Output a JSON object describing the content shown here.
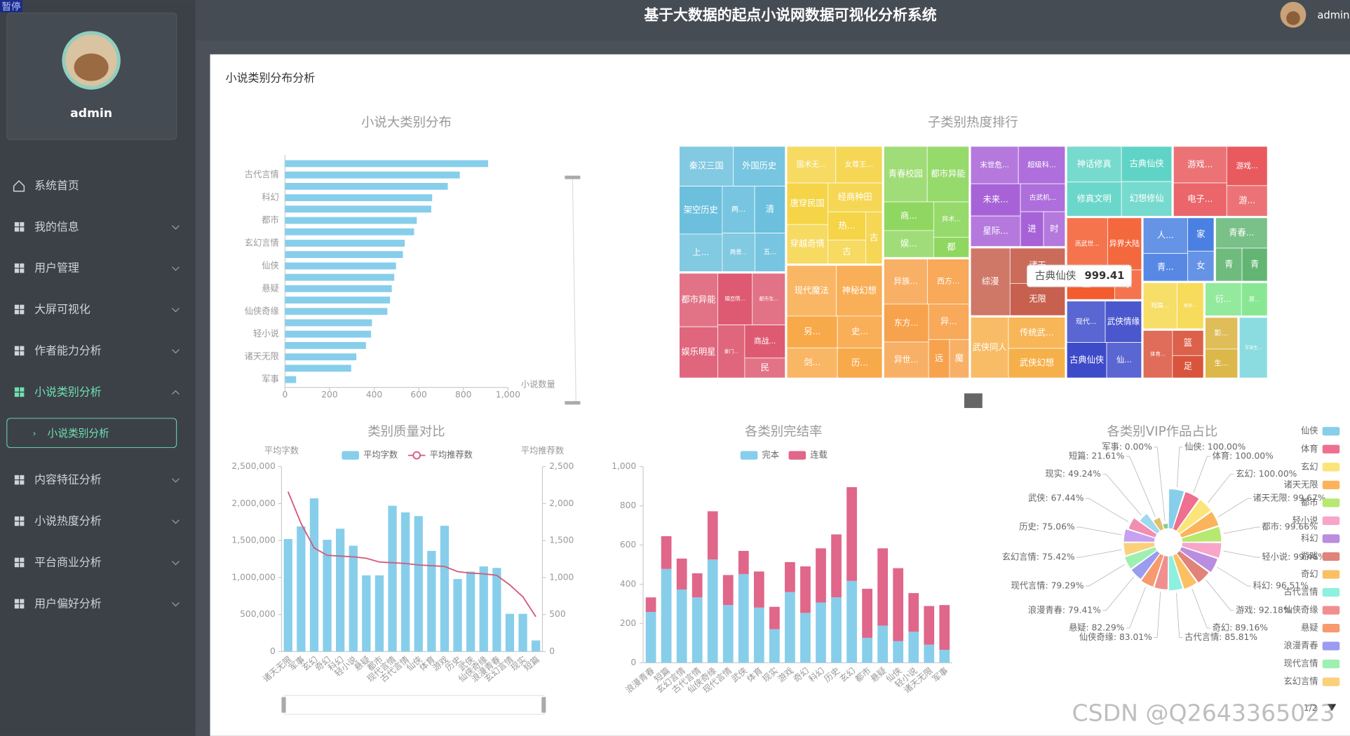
{
  "header": {
    "title": "基于大数据的起点小说网数据可视化分析系统",
    "user": "admin",
    "badge": "暂停"
  },
  "sidebar": {
    "profile": "admin",
    "menu": [
      {
        "label": "系统首页"
      },
      {
        "label": "我的信息"
      },
      {
        "label": "用户管理"
      },
      {
        "label": "大屏可视化"
      },
      {
        "label": "作者能力分析"
      },
      {
        "label": "小说类别分析",
        "children": [
          "小说类别分析"
        ]
      },
      {
        "label": "内容特征分析"
      },
      {
        "label": "小说热度分析"
      },
      {
        "label": "平台商业分析"
      },
      {
        "label": "用户偏好分析"
      }
    ]
  },
  "panel_title": "小说类别分布分析",
  "watermark": "CSDN @Q2643365023",
  "chart_data": [
    {
      "type": "hbar",
      "title": "小说大类别分布",
      "color": "#87ceeb",
      "categories": [
        null,
        "古代言情",
        null,
        "科幻",
        null,
        "都市",
        null,
        "玄幻言情",
        null,
        "仙侠",
        null,
        "悬疑",
        null,
        "仙侠奇缘",
        null,
        "轻小说",
        null,
        "诸天无限",
        null,
        "军事"
      ],
      "values": [
        911,
        784,
        730,
        660,
        656,
        591,
        579,
        537,
        529,
        498,
        490,
        479,
        471,
        459,
        390,
        386,
        363,
        320,
        297,
        50
      ],
      "xlim": [
        0,
        1000
      ],
      "xticks": [
        0,
        200,
        400,
        600,
        800,
        {
          "value": 1000,
          "label": "1,000"
        }
      ],
      "x_label": "小说数量"
    },
    {
      "type": "treemap",
      "title": "子类别热度排行",
      "groups": [
        {
          "color": "#6cc0dd",
          "children": [
            {
              "name": "秦汉三国",
              "value": 1200
            },
            {
              "name": "外国历史",
              "value": 1150
            },
            {
              "name": "架空历史",
              "value": 1150
            },
            {
              "name": "上...",
              "value": 900
            },
            {
              "name": "两...",
              "value": 850
            },
            {
              "name": "清",
              "value": 800
            },
            {
              "name": "两晋...",
              "value": 700
            },
            {
              "name": "五...",
              "value": 650
            }
          ]
        },
        {
          "color": "#dd5a72",
          "children": [
            {
              "name": "都市异能",
              "value": 1150
            },
            {
              "name": "娱乐明星",
              "value": 1100
            },
            {
              "name": "婚恋情...",
              "value": 1000
            },
            {
              "name": "都市生...",
              "value": 950
            },
            {
              "name": "豪门...",
              "value": 800
            },
            {
              "name": "商战...",
              "value": 750
            },
            {
              "name": "民",
              "value": 450
            }
          ]
        },
        {
          "color": "#f5d447",
          "children": [
            {
              "name": "国术无...",
              "value": 1000
            },
            {
              "name": "女尊王...",
              "value": 950
            },
            {
              "name": "唐穿民国",
              "value": 950
            },
            {
              "name": "穿越奇情",
              "value": 900
            },
            {
              "name": "经商种田",
              "value": 880
            },
            {
              "name": "热...",
              "value": 600
            },
            {
              "name": "古",
              "value": 500
            },
            {
              "name": "古",
              "value": 480
            }
          ]
        },
        {
          "color": "#f8a94a",
          "children": [
            {
              "name": "现代魔法",
              "value": 1400
            },
            {
              "name": "神秘幻想",
              "value": 1300
            },
            {
              "name": "另...",
              "value": 900
            },
            {
              "name": "剑...",
              "value": 850
            },
            {
              "name": "史...",
              "value": 800
            },
            {
              "name": "历...",
              "value": 750
            }
          ]
        },
        {
          "color": "#8fd760",
          "children": [
            {
              "name": "青春校园",
              "value": 1350
            },
            {
              "name": "都市异能",
              "value": 1300
            },
            {
              "name": "商...",
              "value": 800
            },
            {
              "name": "娱...",
              "value": 750
            },
            {
              "name": "异术...",
              "value": 700
            },
            {
              "name": "都",
              "value": 400
            }
          ]
        },
        {
          "color": "#f7a24c",
          "children": [
            {
              "name": "异族...",
              "value": 1100
            },
            {
              "name": "西方...",
              "value": 1050
            },
            {
              "name": "东方...",
              "value": 950
            },
            {
              "name": "异世...",
              "value": 900
            },
            {
              "name": "异...",
              "value": 800
            },
            {
              "name": "远",
              "value": 450
            },
            {
              "name": "魔",
              "value": 420
            }
          ]
        },
        {
          "color": "#a862d8",
          "children": [
            {
              "name": "末世危...",
              "value": 1000
            },
            {
              "name": "超级科...",
              "value": 980
            },
            {
              "name": "未来...",
              "value": 900
            },
            {
              "name": "星际...",
              "value": 850
            },
            {
              "name": "古武机...",
              "value": 700
            },
            {
              "name": "进",
              "value": 450
            },
            {
              "name": "时",
              "value": 420
            }
          ]
        },
        {
          "color": "#c7604e",
          "children": [
            {
              "name": "综漫",
              "value": 1500
            },
            {
              "name": "诸天",
              "value": 1100
            },
            {
              "name": "无限",
              "value": 1000
            }
          ]
        },
        {
          "color": "#f6b04a",
          "children": [
            {
              "name": "武侠同人",
              "value": 1300
            },
            {
              "name": "传统武...",
              "value": 1000
            },
            {
              "name": "武侠幻想",
              "value": 950
            }
          ]
        },
        {
          "color": "#5fd4c6",
          "children": [
            {
              "name": "神话修真",
              "value": 1100
            },
            {
              "name": "修真文明",
              "value": 1050
            },
            {
              "name": "古典仙侠",
              "value": 999.41
            },
            {
              "name": "幻想修仙",
              "value": 980
            }
          ]
        },
        {
          "color": "#e85a5e",
          "children": [
            {
              "name": "游戏...",
              "value": 1100
            },
            {
              "name": "电子...",
              "value": 1000
            },
            {
              "name": "游戏...",
              "value": 900
            },
            {
              "name": "游...",
              "value": 700
            }
          ]
        },
        {
          "color": "#f35c2e",
          "children": [
            {
              "name": "高武世...",
              "value": 1200
            },
            {
              "name": "异界大陆",
              "value": 1000
            },
            {
              "name": "王...",
              "value": 800
            },
            {
              "name": "东",
              "value": 450
            }
          ]
        },
        {
          "color": "#3d4bc9",
          "children": [
            {
              "name": "现代...",
              "value": 900
            },
            {
              "name": "武侠情缘",
              "value": 850
            },
            {
              "name": "古典仙侠",
              "value": 800
            },
            {
              "name": "仙...",
              "value": 700
            }
          ]
        },
        {
          "color": "#4a80e2",
          "children": [
            {
              "name": "人...",
              "value": 900
            },
            {
              "name": "青...",
              "value": 700
            },
            {
              "name": "家",
              "value": 500
            },
            {
              "name": "女",
              "value": 450
            }
          ]
        },
        {
          "color": "#63b574",
          "children": [
            {
              "name": "青春...",
              "value": 900
            },
            {
              "name": "青",
              "value": 500
            },
            {
              "name": "青",
              "value": 480
            }
          ]
        },
        {
          "color": "#f6d84e",
          "children": [
            {
              "name": "短篇...",
              "value": 900
            },
            {
              "name": "奇妙...",
              "value": 700
            }
          ]
        },
        {
          "color": "#d9543c",
          "children": [
            {
              "name": "体育...",
              "value": 800
            },
            {
              "name": "篮",
              "value": 450
            },
            {
              "name": "足",
              "value": 400
            }
          ]
        },
        {
          "color": "#80e58b",
          "children": [
            {
              "name": "衍...",
              "value": 700
            },
            {
              "name": "原...",
              "value": 500
            }
          ]
        },
        {
          "color": "#d9b23c",
          "children": [
            {
              "name": "影...",
              "value": 600
            },
            {
              "name": "生...",
              "value": 550
            }
          ]
        },
        {
          "color": "#76d6da",
          "children": [
            {
              "name": "军旅生...",
              "value": 1000
            }
          ]
        }
      ],
      "tooltip": {
        "name": "古典仙侠",
        "value": 999.41
      }
    },
    {
      "type": "bar_line",
      "title": "类别质量对比",
      "categories": [
        "诸天无限",
        "军事",
        "玄幻",
        "奇幻",
        "科幻",
        "轻小说",
        "悬疑",
        "都市",
        "现代言情",
        "古代言情",
        "仙侠",
        "体育",
        "游戏",
        "历史",
        "武侠",
        "仙侠奇缘",
        "浪漫青春",
        "玄幻言情",
        "现实",
        "短篇"
      ],
      "series": [
        {
          "name": "平均字数",
          "color": "#87ceeb",
          "values": [
            1520000,
            1690000,
            2070000,
            1510000,
            1660000,
            1430000,
            1030000,
            1030000,
            1970000,
            1880000,
            1830000,
            1360000,
            1700000,
            980000,
            1080000,
            1150000,
            1130000,
            510000,
            510000,
            150000
          ]
        },
        {
          "name": "平均推荐数",
          "color": "#d35a7a",
          "axis": "y2",
          "values": [
            2160,
            1730,
            1400,
            1300,
            1290,
            1280,
            1260,
            1210,
            1200,
            1190,
            1170,
            1160,
            1150,
            1080,
            1060,
            1050,
            1030,
            900,
            740,
            470
          ]
        }
      ],
      "ylim": [
        0,
        2500000
      ],
      "yticks": [
        0,
        {
          "value": 500000,
          "label": "500,000"
        },
        {
          "value": 1000000,
          "label": "1,000,000"
        },
        {
          "value": 1500000,
          "label": "1,500,000"
        },
        {
          "value": 2000000,
          "label": "2,000,000"
        },
        {
          "value": 2500000,
          "label": "2,500,000"
        }
      ],
      "y2lim": [
        0,
        2500
      ],
      "y2ticks": [
        0,
        500,
        {
          "value": 1000,
          "label": "1,000"
        },
        {
          "value": 1500,
          "label": "1,500"
        },
        {
          "value": 2000,
          "label": "2,000"
        },
        {
          "value": 2500,
          "label": "2,500"
        }
      ],
      "y_label": "平均字数",
      "y2_label": "平均推荐数"
    },
    {
      "type": "stacked_bar",
      "title": "各类别完结率",
      "categories": [
        "浪漫青春",
        "短篇",
        "玄幻言情",
        "古代言情",
        "仙侠奇缘",
        "现代言情",
        "武侠",
        "体育",
        "现实",
        "游戏",
        "奇幻",
        "科幻",
        "历史",
        "玄幻",
        "都市",
        "悬疑",
        "仙侠",
        "轻小说",
        "诸天无限",
        "军事"
      ],
      "series": [
        {
          "name": "完本",
          "color": "#87ceeb",
          "values": [
            259,
            478,
            373,
            333,
            526,
            294,
            452,
            281,
            171,
            360,
            254,
            307,
            333,
            417,
            127,
            189,
            110,
            158,
            92,
            66
          ]
        },
        {
          "name": "连载",
          "color": "#e0668a",
          "values": [
            74,
            167,
            158,
            123,
            246,
            153,
            118,
            184,
            114,
            153,
            237,
            276,
            321,
            478,
            250,
            394,
            372,
            197,
            197,
            228
          ]
        }
      ],
      "ylim": [
        0,
        1000
      ],
      "yticks": [
        0,
        200,
        400,
        600,
        800,
        {
          "value": 1000,
          "label": "1,000"
        }
      ]
    },
    {
      "type": "rose",
      "title": "各类别VIP作品占比",
      "categories": [
        "仙侠",
        "体育",
        "玄幻",
        "诸天无限",
        "都市",
        "轻小说",
        "科幻",
        "游戏",
        "奇幻",
        "古代言情",
        "仙侠奇缘",
        "悬疑",
        "浪漫青春",
        "现代言情",
        "玄幻言情",
        "历史",
        "武侠",
        "现实",
        "短篇",
        "军事"
      ],
      "values": [
        100.0,
        100.0,
        100.0,
        99.67,
        99.66,
        99.46,
        96.51,
        92.18,
        89.16,
        85.81,
        83.01,
        82.29,
        79.41,
        79.29,
        75.42,
        75.06,
        67.44,
        49.24,
        21.61,
        0.0
      ],
      "value_labels": [
        "仙侠: 100.00%",
        "体育: 100.00%",
        "玄幻: 100.00%",
        "诸天无限: 99.67%",
        "都市: 99.66%",
        "轻小说: 99.46%",
        "科幻: 96.51%",
        "游戏: 92.18%",
        "奇幻: 89.16%",
        "古代言情: 85.81%",
        "仙侠奇缘: 83.01%",
        "悬疑: 82.29%",
        "浪漫青春: 79.41%",
        "现代言情: 79.29%",
        "玄幻言情: 75.42%",
        "历史: 75.06%",
        "武侠: 67.44%",
        "现实: 49.24%",
        "短篇: 21.61%",
        "军事: 0.00%"
      ],
      "colors": [
        "#87ceeb",
        "#ee6f8f",
        "#fbe57a",
        "#fbb45c",
        "#b7e872",
        "#f7a6c9",
        "#b98de0",
        "#e0837a",
        "#fbc064",
        "#8ef0df",
        "#f08f8f",
        "#f79a6f",
        "#9b9bf0",
        "#9ef0b0",
        "#fbd07a",
        "#c7a0f0",
        "#f28fb0",
        "#a0d8f0",
        "#e0c070",
        "#8fc88f"
      ],
      "legend_page": "1/2"
    }
  ]
}
